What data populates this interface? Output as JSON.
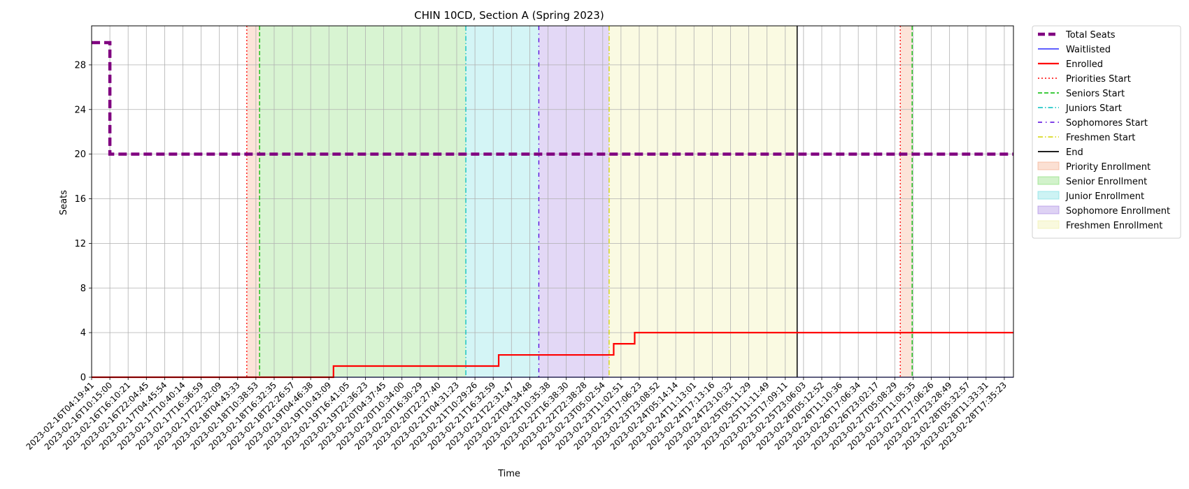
{
  "chart_data": {
    "type": "line",
    "title": "CHIN 10CD, Section A (Spring 2023)",
    "xlabel": "Time",
    "ylabel": "Seats",
    "ylim": [
      0,
      31.5
    ],
    "yticks": [
      0,
      4,
      8,
      12,
      16,
      20,
      24,
      28
    ],
    "grid": true,
    "legend_position": "outside-right-top",
    "x_categories": [
      "2023-02-16T04:19:41",
      "2023-02-16T10:15:00",
      "2023-02-16T16:10:21",
      "2023-02-16T22:04:45",
      "2023-02-17T04:45:54",
      "2023-02-17T10:40:14",
      "2023-02-17T16:36:59",
      "2023-02-17T22:32:09",
      "2023-02-18T04:43:33",
      "2023-02-18T10:38:53",
      "2023-02-18T16:32:35",
      "2023-02-18T22:26:57",
      "2023-02-19T04:46:38",
      "2023-02-19T10:43:09",
      "2023-02-19T16:41:05",
      "2023-02-19T22:36:23",
      "2023-02-20T04:37:45",
      "2023-02-20T10:34:00",
      "2023-02-20T16:30:29",
      "2023-02-20T22:27:40",
      "2023-02-21T04:31:23",
      "2023-02-21T10:29:26",
      "2023-02-21T16:32:59",
      "2023-02-21T22:31:47",
      "2023-02-22T04:34:48",
      "2023-02-22T10:35:38",
      "2023-02-22T16:38:30",
      "2023-02-22T22:38:28",
      "2023-02-23T05:02:54",
      "2023-02-23T11:02:51",
      "2023-02-23T17:06:23",
      "2023-02-23T23:08:52",
      "2023-02-24T05:14:14",
      "2023-02-24T11:13:01",
      "2023-02-24T17:13:16",
      "2023-02-24T23:10:32",
      "2023-02-25T05:11:29",
      "2023-02-25T11:11:49",
      "2023-02-25T17:09:11",
      "2023-02-25T23:06:03",
      "2023-02-26T05:12:52",
      "2023-02-26T11:10:36",
      "2023-02-26T17:06:34",
      "2023-02-26T23:02:17",
      "2023-02-27T05:08:29",
      "2023-02-27T11:05:35",
      "2023-02-27T17:06:26",
      "2023-02-27T23:28:49",
      "2023-02-28T05:32:57",
      "2023-02-28T11:33:31",
      "2023-02-28T17:35:23"
    ],
    "series": [
      {
        "name": "Total Seats",
        "color": "#800080",
        "style": "dashed-thick",
        "steps": [
          [
            0,
            30
          ],
          [
            1,
            20
          ],
          [
            50.5,
            20
          ]
        ]
      },
      {
        "name": "Waitlisted",
        "color": "#0000ff",
        "style": "solid-thin",
        "steps": [
          [
            0,
            0
          ],
          [
            50.5,
            0
          ]
        ]
      },
      {
        "name": "Enrolled",
        "color": "#ff0000",
        "style": "solid",
        "steps": [
          [
            0,
            0
          ],
          [
            13.25,
            1
          ],
          [
            22.3,
            2
          ],
          [
            28.6,
            3
          ],
          [
            29.75,
            4
          ],
          [
            50.5,
            4
          ]
        ]
      }
    ],
    "markers": [
      {
        "name": "Priorities Start",
        "color": "#ff0000",
        "style": "dotted",
        "positions": [
          8.5,
          44.3
        ]
      },
      {
        "name": "Seniors Start",
        "color": "#00bb00",
        "style": "dashed",
        "positions": [
          9.2,
          44.95
        ]
      },
      {
        "name": "Juniors Start",
        "color": "#00bfbf",
        "style": "dashdot",
        "positions": [
          20.5
        ]
      },
      {
        "name": "Sophomores Start",
        "color": "#5500dd",
        "style": "dashdot-dense",
        "positions": [
          24.5
        ]
      },
      {
        "name": "Freshmen Start",
        "color": "#d4d400",
        "style": "dashdot",
        "positions": [
          28.35
        ]
      },
      {
        "name": "End",
        "color": "#000000",
        "style": "solid",
        "positions": [
          38.65
        ]
      }
    ],
    "regions": [
      {
        "name": "Priority Enrollment",
        "color": "#f4a582",
        "spans": [
          [
            8.5,
            9.2
          ],
          [
            44.3,
            44.95
          ]
        ]
      },
      {
        "name": "Senior Enrollment",
        "color": "#7ddb6a",
        "spans": [
          [
            9.2,
            20.5
          ]
        ]
      },
      {
        "name": "Junior Enrollment",
        "color": "#6fdde0",
        "spans": [
          [
            20.5,
            24.5
          ]
        ]
      },
      {
        "name": "Sophomore Enrollment",
        "color": "#a17fe0",
        "spans": [
          [
            24.5,
            28.35
          ]
        ]
      },
      {
        "name": "Freshmen Enrollment",
        "color": "#eeeea0",
        "spans": [
          [
            28.35,
            38.65
          ]
        ]
      }
    ]
  }
}
